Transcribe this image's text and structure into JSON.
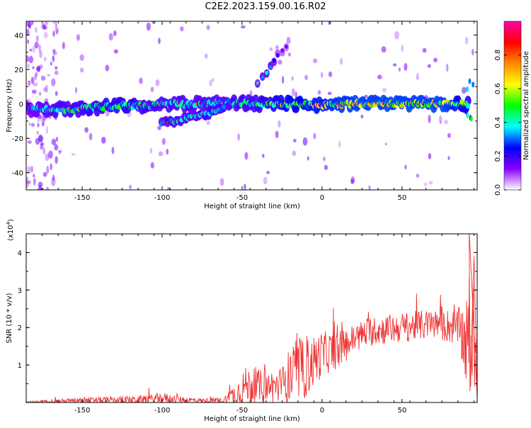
{
  "title": "C2E2.2023.159.00.16.R02",
  "chart_data": [
    {
      "type": "heatmap",
      "xlabel": "Height of straight line (km)",
      "ylabel": "Frequency (Hz)",
      "xlim": [
        -185,
        97
      ],
      "ylim": [
        -50,
        48
      ],
      "xticks": [
        -150,
        -100,
        -50,
        0,
        50
      ],
      "yticks": [
        -40,
        -20,
        0,
        20,
        40
      ],
      "colorbar": {
        "label": "Normalized spectral amplitude",
        "range": [
          0,
          1
        ],
        "ticks": [
          "0.0",
          "0.2",
          "0.4",
          "0.6",
          "0.8"
        ],
        "colors": [
          "#ffffff",
          "#8800ff",
          "#0000ff",
          "#00ffff",
          "#00ff00",
          "#ffff00",
          "#ff8800",
          "#ff0000",
          "#ff00aa"
        ]
      },
      "main_track": [
        {
          "x": -185,
          "y": -3,
          "amp": 0.35
        },
        {
          "x": -170,
          "y": -3,
          "amp": 0.5
        },
        {
          "x": -150,
          "y": -3,
          "amp": 0.55
        },
        {
          "x": -130,
          "y": -1,
          "amp": 0.6
        },
        {
          "x": -110,
          "y": -1,
          "amp": 0.55
        },
        {
          "x": -95,
          "y": 0,
          "amp": 0.5
        },
        {
          "x": -80,
          "y": 0,
          "amp": 0.5
        },
        {
          "x": -60,
          "y": 1,
          "amp": 0.5
        },
        {
          "x": -40,
          "y": 0,
          "amp": 0.55
        },
        {
          "x": -20,
          "y": 0,
          "amp": 0.7
        },
        {
          "x": 0,
          "y": -1,
          "amp": 0.75
        },
        {
          "x": 20,
          "y": 0,
          "amp": 0.8
        },
        {
          "x": 40,
          "y": 0,
          "amp": 0.8
        },
        {
          "x": 60,
          "y": 0,
          "amp": 0.8
        },
        {
          "x": 80,
          "y": 0,
          "amp": 0.8
        },
        {
          "x": 92,
          "y": 0,
          "amp": 0.6
        }
      ],
      "side_track": [
        {
          "x": -100,
          "y": -11,
          "amp": 0.45
        },
        {
          "x": -90,
          "y": -10,
          "amp": 0.5
        },
        {
          "x": -80,
          "y": -7,
          "amp": 0.5
        },
        {
          "x": -70,
          "y": -5,
          "amp": 0.55
        },
        {
          "x": -60,
          "y": -2,
          "amp": 0.5
        }
      ],
      "upper_track": [
        {
          "x": -40,
          "y": 12,
          "amp": 0.4
        },
        {
          "x": -33,
          "y": 20,
          "amp": 0.5
        },
        {
          "x": -28,
          "y": 28,
          "amp": 0.25
        },
        {
          "x": -20,
          "y": 35,
          "amp": 0.15
        }
      ]
    },
    {
      "type": "line",
      "xlabel": "Height of straight line (km)",
      "ylabel": "SNR (10 * v/v)",
      "y_multiplier": "(x10",
      "y_multiplier_exp": "4",
      "y_multiplier_close": ")",
      "xlim": [
        -185,
        97
      ],
      "ylim": [
        0,
        4.5
      ],
      "xticks": [
        -150,
        -100,
        -50,
        0,
        50
      ],
      "yticks": [
        1,
        2,
        3,
        4
      ],
      "color": "#ee3333",
      "envelope": [
        {
          "x": -185,
          "base": 0.01,
          "amp": 0.02
        },
        {
          "x": -170,
          "base": 0.03,
          "amp": 0.05
        },
        {
          "x": -150,
          "base": 0.05,
          "amp": 0.08
        },
        {
          "x": -130,
          "base": 0.06,
          "amp": 0.1
        },
        {
          "x": -110,
          "base": 0.07,
          "amp": 0.12
        },
        {
          "x": -100,
          "base": 0.12,
          "amp": 0.15
        },
        {
          "x": -90,
          "base": 0.08,
          "amp": 0.1
        },
        {
          "x": -75,
          "base": 0.05,
          "amp": 0.06
        },
        {
          "x": -62,
          "base": 0.05,
          "amp": 0.08
        },
        {
          "x": -55,
          "base": 0.2,
          "amp": 0.3
        },
        {
          "x": -48,
          "base": 0.45,
          "amp": 0.5
        },
        {
          "x": -35,
          "base": 0.4,
          "amp": 0.45
        },
        {
          "x": -25,
          "base": 0.45,
          "amp": 0.5
        },
        {
          "x": -20,
          "base": 0.7,
          "amp": 0.8
        },
        {
          "x": -10,
          "base": 0.9,
          "amp": 0.8
        },
        {
          "x": 0,
          "base": 1.3,
          "amp": 0.6
        },
        {
          "x": 10,
          "base": 1.4,
          "amp": 0.5
        },
        {
          "x": 20,
          "base": 1.7,
          "amp": 0.4
        },
        {
          "x": 30,
          "base": 1.9,
          "amp": 0.4
        },
        {
          "x": 50,
          "base": 2.0,
          "amp": 0.4
        },
        {
          "x": 70,
          "base": 2.1,
          "amp": 0.4
        },
        {
          "x": 85,
          "base": 2.0,
          "amp": 0.5
        },
        {
          "x": 90,
          "base": 1.6,
          "amp": 1.2
        },
        {
          "x": 97,
          "base": 1.5,
          "amp": 1.5
        }
      ]
    }
  ]
}
